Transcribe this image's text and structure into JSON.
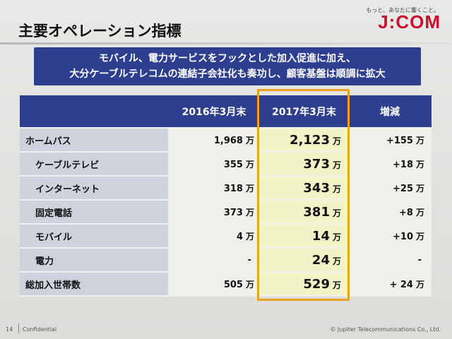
{
  "header": {
    "title": "主要オペレーション指標",
    "tagline": "もっと、あなたに響くこと。",
    "logo": "J:COM"
  },
  "banner": {
    "line1": "モバイル、電力サービスをフックとした加入促進に加え、",
    "line2": "大分ケーブルテレコムの連結子会社化も奏功し、顧客基盤は順調に拡大"
  },
  "table": {
    "headers": [
      "",
      "2016年3月末",
      "2017年3月末",
      "増減"
    ],
    "rows": [
      {
        "label": "ホームパス",
        "v2016": "1,968",
        "v2017": "2,123",
        "diff": "+155",
        "u1": "万",
        "u2": "万",
        "u3": "万"
      },
      {
        "label": "ケーブルテレビ",
        "v2016": "355",
        "v2017": "373",
        "diff": "+18",
        "u1": "万",
        "u2": "万",
        "u3": "万"
      },
      {
        "label": "インターネット",
        "v2016": "318",
        "v2017": "343",
        "diff": "+25",
        "u1": "万",
        "u2": "万",
        "u3": "万"
      },
      {
        "label": "固定電話",
        "v2016": "373",
        "v2017": "381",
        "diff": "+8",
        "u1": "万",
        "u2": "万",
        "u3": "万"
      },
      {
        "label": "モバイル",
        "v2016": "4",
        "v2017": "14",
        "diff": "+10",
        "u1": "万",
        "u2": "万",
        "u3": "万"
      },
      {
        "label": "電力",
        "v2016": "-",
        "v2017": "24",
        "diff": "-",
        "u1": "",
        "u2": "万",
        "u3": ""
      },
      {
        "label": "総加入世帯数",
        "v2016": "505",
        "v2017": "529",
        "diff": "+ 24",
        "u1": "万",
        "u2": "万",
        "u3": "万"
      }
    ]
  },
  "footer": {
    "page": "14",
    "confidential": "Confidential",
    "copyright": "© Jupiter Telecommunications Co., Ltd."
  },
  "colors": {
    "header_blue": "#2e3f8f",
    "highlight_orange": "#f0a020",
    "brand_red": "#c8102e"
  }
}
